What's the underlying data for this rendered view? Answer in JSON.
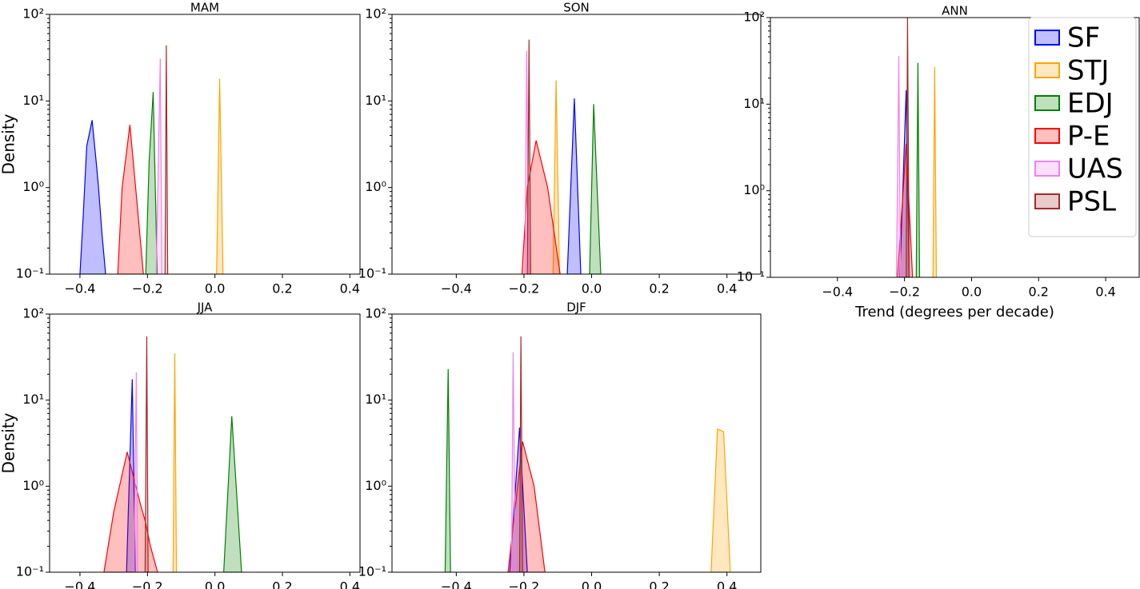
{
  "chart_data": [
    {
      "type": "density",
      "title": "MAM",
      "ylabel": "Density",
      "log_y": true,
      "xlim": [
        -0.49,
        0.43
      ],
      "ylim": [
        0.1,
        100
      ],
      "xticks": [
        {
          "value": -0.4,
          "label": "−0.4"
        },
        {
          "value": -0.2,
          "label": "−0.2"
        },
        {
          "value": 0,
          "label": "0.0"
        },
        0.2,
        0.4
      ],
      "yticks": [
        {
          "value": 0.1,
          "label": "10⁻¹"
        },
        {
          "value": 1,
          "label": "10⁰"
        },
        {
          "value": 10,
          "label": "10¹"
        },
        {
          "value": 100,
          "label": "10²"
        }
      ],
      "series": [
        {
          "color": "#0000ff",
          "x": [
            -0.4,
            -0.39,
            -0.38,
            -0.364,
            -0.352,
            -0.345,
            -0.335,
            -0.324
          ],
          "values": [
            0.1,
            0.5,
            3,
            6,
            2,
            1,
            0.3,
            0.1
          ]
        },
        {
          "color": "#ffa500",
          "x": [
            0.005,
            0.014,
            0.024
          ],
          "values": [
            0.1,
            18,
            0.1
          ]
        },
        {
          "color": "#008000",
          "x": [
            -0.205,
            -0.195,
            -0.183,
            -0.171
          ],
          "values": [
            0.1,
            2,
            12.7,
            0.1
          ]
        },
        {
          "color": "#ff0000",
          "x": [
            -0.288,
            -0.275,
            -0.252,
            -0.235,
            -0.212
          ],
          "values": [
            0.1,
            1,
            5.3,
            1,
            0.1
          ]
        },
        {
          "color": "#ee82ee",
          "x": [
            -0.174,
            -0.162,
            -0.157
          ],
          "values": [
            0.1,
            31,
            0.1
          ]
        },
        {
          "color": "#a52a2a",
          "x": [
            -0.148,
            -0.144,
            -0.14
          ],
          "values": [
            0.1,
            44,
            0.1
          ]
        }
      ]
    },
    {
      "type": "density",
      "title": "SON",
      "log_y": true,
      "xlim": [
        -0.59,
        0.5
      ],
      "ylim": [
        0.1,
        100
      ],
      "xticks": [
        {
          "value": -0.4,
          "label": "−0.4"
        },
        {
          "value": -0.2,
          "label": "−0.2"
        },
        {
          "value": 0,
          "label": "0.0"
        },
        0.2,
        0.4
      ],
      "yticks": [
        {
          "value": 0.1,
          "label": "10⁻¹"
        },
        {
          "value": 1,
          "label": "10⁰"
        },
        {
          "value": 10,
          "label": "10¹"
        },
        {
          "value": 100,
          "label": "10²"
        }
      ],
      "series": [
        {
          "color": "#0000ff",
          "x": [
            -0.072,
            -0.051,
            -0.032
          ],
          "values": [
            0.1,
            10.7,
            0.1
          ]
        },
        {
          "color": "#ffa500",
          "x": [
            -0.114,
            -0.105,
            -0.095
          ],
          "values": [
            0.1,
            17.3,
            0.1
          ]
        },
        {
          "color": "#008000",
          "x": [
            -0.006,
            0.006,
            0.027
          ],
          "values": [
            0.1,
            9.2,
            0.1
          ]
        },
        {
          "color": "#ff0000",
          "x": [
            -0.206,
            -0.19,
            -0.164,
            -0.13,
            -0.093
          ],
          "values": [
            0.1,
            1,
            3.5,
            1,
            0.1
          ]
        },
        {
          "color": "#ee82ee",
          "x": [
            -0.197,
            -0.192,
            -0.185
          ],
          "values": [
            0.1,
            38,
            0.1
          ]
        },
        {
          "color": "#a52a2a",
          "x": [
            -0.19,
            -0.185,
            -0.18
          ],
          "values": [
            0.1,
            51,
            0.1
          ]
        }
      ]
    },
    {
      "type": "density",
      "title": "ANN",
      "xlabel": "Trend (degrees per decade)",
      "log_y": true,
      "legend": "upper right",
      "xlim": [
        -0.6,
        0.5
      ],
      "ylim": [
        0.1,
        100
      ],
      "xticks": [
        {
          "value": -0.4,
          "label": "−0.4"
        },
        {
          "value": -0.2,
          "label": "−0.2"
        },
        {
          "value": 0,
          "label": "0.0"
        },
        0.2,
        0.4
      ],
      "yticks": [
        {
          "value": 0.1,
          "label": "10⁻¹"
        },
        {
          "value": 1,
          "label": "10⁰"
        },
        {
          "value": 10,
          "label": "10¹"
        },
        {
          "value": 100,
          "label": "10²"
        }
      ],
      "series": [
        {
          "name": "SF",
          "color": "#0000ff",
          "x": [
            -0.214,
            -0.195,
            -0.186
          ],
          "values": [
            0.1,
            14.5,
            0.1
          ]
        },
        {
          "name": "STJ",
          "color": "#ffa500",
          "x": [
            -0.115,
            -0.11,
            -0.105
          ],
          "values": [
            0.1,
            27,
            0.1
          ]
        },
        {
          "name": "EDJ",
          "color": "#008000",
          "x": [
            -0.165,
            -0.16,
            -0.155
          ],
          "values": [
            0.1,
            30,
            0.1
          ]
        },
        {
          "name": "P-E",
          "color": "#ff0000",
          "x": [
            -0.221,
            -0.195,
            -0.176
          ],
          "values": [
            0.1,
            3.5,
            0.1
          ]
        },
        {
          "name": "UAS",
          "color": "#ee82ee",
          "x": [
            -0.224,
            -0.217,
            -0.212
          ],
          "values": [
            0.1,
            36,
            0.1
          ]
        },
        {
          "name": "PSL",
          "color": "#a52a2a",
          "x": [
            -0.195,
            -0.191,
            -0.186
          ],
          "values": [
            0.1,
            100,
            0.1
          ]
        }
      ]
    },
    {
      "type": "density",
      "title": "JJA",
      "ylabel": "Density",
      "log_y": true,
      "xlim": [
        -0.49,
        0.43
      ],
      "ylim": [
        0.1,
        100
      ],
      "xticks": [
        {
          "value": -0.4,
          "label": "−0.4"
        },
        {
          "value": -0.2,
          "label": "−0.2"
        },
        {
          "value": 0,
          "label": "0.0"
        },
        0.2,
        0.4
      ],
      "yticks": [
        {
          "value": 0.1,
          "label": "10⁻¹"
        },
        {
          "value": 1,
          "label": "10⁰"
        },
        {
          "value": 10,
          "label": "10¹"
        },
        {
          "value": 100,
          "label": "10²"
        }
      ],
      "series": [
        {
          "color": "#0000ff",
          "x": [
            -0.262,
            -0.245,
            -0.236
          ],
          "values": [
            0.1,
            17.5,
            0.1
          ]
        },
        {
          "color": "#ffa500",
          "x": [
            -0.124,
            -0.119,
            -0.114
          ],
          "values": [
            0.1,
            35,
            0.1
          ]
        },
        {
          "color": "#008000",
          "x": [
            0.026,
            0.05,
            0.079
          ],
          "values": [
            0.1,
            6.5,
            0.1
          ]
        },
        {
          "color": "#ff0000",
          "x": [
            -0.329,
            -0.3,
            -0.26,
            -0.22,
            -0.207,
            -0.191,
            -0.17
          ],
          "values": [
            0.1,
            0.5,
            2.5,
            0.6,
            0.4,
            0.2,
            0.1
          ]
        },
        {
          "color": "#ee82ee",
          "x": [
            -0.24,
            -0.233,
            -0.229
          ],
          "values": [
            0.1,
            21,
            0.1
          ]
        },
        {
          "color": "#a52a2a",
          "x": [
            -0.207,
            -0.202,
            -0.198
          ],
          "values": [
            0.1,
            55,
            0.1
          ]
        }
      ]
    },
    {
      "type": "density",
      "title": "DJF",
      "log_y": true,
      "xlim": [
        -0.59,
        0.5
      ],
      "ylim": [
        0.1,
        100
      ],
      "xticks": [
        {
          "value": -0.4,
          "label": "−0.4"
        },
        {
          "value": -0.2,
          "label": "−0.2"
        },
        {
          "value": 0,
          "label": "0.0"
        },
        0.2,
        0.4
      ],
      "yticks": [
        {
          "value": 0.1,
          "label": "10⁻¹"
        },
        {
          "value": 1,
          "label": "10⁰"
        },
        {
          "value": 10,
          "label": "10¹"
        },
        {
          "value": 100,
          "label": "10²"
        }
      ],
      "series": [
        {
          "color": "#0000ff",
          "x": [
            -0.242,
            -0.213,
            -0.19
          ],
          "values": [
            0.1,
            4.8,
            0.1
          ]
        },
        {
          "color": "#ffa500",
          "x": [
            0.353,
            0.372,
            0.39,
            0.41
          ],
          "values": [
            0.1,
            4.6,
            4.3,
            0.1
          ]
        },
        {
          "color": "#008000",
          "x": [
            -0.433,
            -0.424,
            -0.417
          ],
          "values": [
            0.1,
            23,
            0.1
          ]
        },
        {
          "color": "#ff0000",
          "x": [
            -0.247,
            -0.204,
            -0.17,
            -0.138
          ],
          "values": [
            0.1,
            3.3,
            1,
            0.1
          ]
        },
        {
          "color": "#ee82ee",
          "x": [
            -0.237,
            -0.232,
            -0.225
          ],
          "values": [
            0.1,
            36,
            0.1
          ]
        },
        {
          "color": "#a52a2a",
          "x": [
            -0.213,
            -0.209,
            -0.204
          ],
          "values": [
            0.1,
            55,
            0.1
          ]
        }
      ]
    }
  ]
}
